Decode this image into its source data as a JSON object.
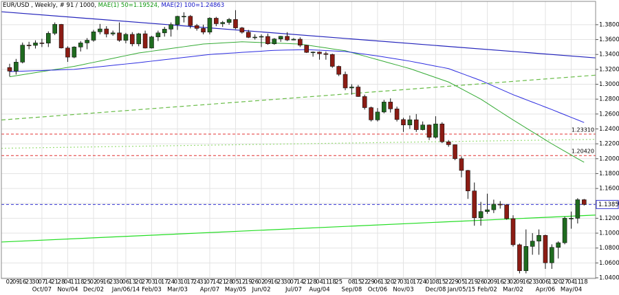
{
  "chart_data": {
    "type": "candlestick",
    "title": "EUR/USD , Weekly, # 91 / 1000,",
    "indicator_labels": [
      {
        "text": "MAE(1) 50=1.19524,",
        "color": "#119911"
      },
      {
        "text": "MAE(2) 100=1.24863",
        "color": "#1515c8"
      }
    ],
    "categories": [
      "02",
      "09",
      "16",
      "23",
      "30",
      "07",
      "14",
      "21",
      "28",
      "04",
      "11",
      "18",
      "25",
      "02",
      "09",
      "16",
      "23",
      "30",
      "06",
      "13",
      "20",
      "27",
      "03",
      "10",
      "17",
      "24",
      "03",
      "10",
      "17",
      "24",
      "31",
      "07",
      "14",
      "21",
      "28",
      "05",
      "12",
      "19",
      "26",
      "02",
      "09",
      "16",
      "23",
      "30",
      "07",
      "14",
      "21",
      "28",
      "04",
      "11",
      "18",
      "25",
      null,
      "08",
      "15",
      "22",
      "29",
      "06",
      "13",
      "20",
      "27",
      "03",
      "10",
      "17",
      "24",
      "01",
      "08",
      "15",
      "22",
      "29",
      "05",
      "12",
      "19",
      "26",
      "02",
      "09",
      "16",
      "23",
      "02",
      "09",
      "16",
      "23",
      "30",
      "06",
      "13",
      "20",
      "27",
      "04",
      "11",
      "18"
    ],
    "month_labels": [
      null,
      null,
      null,
      null,
      null,
      "Oct/07",
      null,
      null,
      null,
      "Nov/04",
      null,
      null,
      null,
      "Dec/02",
      null,
      null,
      null,
      null,
      "Jan/06/14",
      null,
      null,
      null,
      "Feb/03",
      null,
      null,
      null,
      "Mar/03",
      null,
      null,
      null,
      null,
      "Apr/07",
      null,
      null,
      null,
      "May/05",
      null,
      null,
      null,
      "Jun/02",
      null,
      null,
      null,
      null,
      "Jul/07",
      null,
      null,
      null,
      "Aug/04",
      null,
      null,
      null,
      null,
      "Sep/08",
      null,
      null,
      null,
      "Oct/06",
      null,
      null,
      null,
      "Nov/03",
      null,
      null,
      null,
      null,
      "Dec/08",
      null,
      null,
      null,
      "Jan/05/15",
      null,
      null,
      null,
      "Feb/02",
      null,
      null,
      null,
      "Mar/02",
      null,
      null,
      null,
      null,
      "Apr/06",
      null,
      null,
      null,
      "May/04",
      null,
      null
    ],
    "open": [
      1.3225,
      1.3176,
      1.3297,
      1.3525,
      1.3522,
      1.3555,
      1.3552,
      1.3684,
      1.3804,
      1.3487,
      1.3364,
      1.35,
      1.3555,
      1.3591,
      1.3704,
      1.3743,
      1.3675,
      1.369,
      1.359,
      1.367,
      1.3542,
      1.3678,
      1.3486,
      1.3636,
      1.369,
      1.374,
      1.3802,
      1.3912,
      1.3913,
      1.3788,
      1.375,
      1.37,
      1.3887,
      1.3813,
      1.383,
      1.387,
      1.3757,
      1.3699,
      1.363,
      1.3633,
      1.3642,
      1.3543,
      1.3608,
      1.3644,
      1.3594,
      1.3605,
      1.3524,
      1.3428,
      1.3432,
      1.3411,
      1.34,
      1.324,
      1.3133,
      1.295,
      1.2963,
      1.2835,
      1.2686,
      1.2521,
      1.2627,
      1.2761,
      1.2669,
      1.2526,
      1.2453,
      1.2523,
      1.239,
      1.2453,
      1.2288,
      1.2467,
      1.2227,
      1.2188,
      1.2,
      1.1842,
      1.1567,
      1.1207,
      1.129,
      1.1314,
      1.1388,
      1.138,
      1.1195,
      1.0844,
      1.0495,
      1.0822,
      1.0893,
      1.097,
      1.0602,
      1.0809,
      1.0871,
      1.12,
      1.12,
      1.1449
    ],
    "high": [
      1.3275,
      1.334,
      1.356,
      1.357,
      1.359,
      1.361,
      1.371,
      1.383,
      1.381,
      1.351,
      1.351,
      1.358,
      1.362,
      1.373,
      1.381,
      1.378,
      1.372,
      1.383,
      1.369,
      1.37,
      1.369,
      1.372,
      1.365,
      1.372,
      1.377,
      1.383,
      1.392,
      1.3967,
      1.393,
      1.381,
      1.38,
      1.39,
      1.3905,
      1.385,
      1.389,
      1.3995,
      1.377,
      1.373,
      1.367,
      1.367,
      1.368,
      1.362,
      1.365,
      1.37,
      1.362,
      1.363,
      1.353,
      1.344,
      1.344,
      1.344,
      1.341,
      1.325,
      1.317,
      1.3,
      1.299,
      1.286,
      1.27,
      1.268,
      1.279,
      1.281,
      1.27,
      1.255,
      1.258,
      1.26,
      1.25,
      1.246,
      1.257,
      1.249,
      1.225,
      1.219,
      1.203,
      1.185,
      1.168,
      1.142,
      1.153,
      1.145,
      1.143,
      1.139,
      1.124,
      1.086,
      1.105,
      1.1,
      1.105,
      1.098,
      1.085,
      1.089,
      1.122,
      1.129,
      1.147,
      1.146
    ],
    "low": [
      1.3105,
      1.313,
      1.328,
      1.347,
      1.348,
      1.35,
      1.35,
      1.366,
      1.348,
      1.33,
      1.335,
      1.344,
      1.347,
      1.357,
      1.367,
      1.363,
      1.365,
      1.357,
      1.355,
      1.351,
      1.351,
      1.348,
      1.348,
      1.358,
      1.364,
      1.364,
      1.373,
      1.383,
      1.375,
      1.372,
      1.367,
      1.367,
      1.378,
      1.377,
      1.38,
      1.374,
      1.368,
      1.362,
      1.36,
      1.35,
      1.353,
      1.353,
      1.357,
      1.358,
      1.359,
      1.35,
      1.342,
      1.337,
      1.333,
      1.333,
      1.322,
      1.311,
      1.292,
      1.286,
      1.283,
      1.266,
      1.25,
      1.25,
      1.261,
      1.262,
      1.25,
      1.236,
      1.24,
      1.236,
      1.238,
      1.225,
      1.227,
      1.221,
      1.216,
      1.198,
      1.175,
      1.146,
      1.11,
      1.11,
      1.126,
      1.127,
      1.133,
      1.118,
      1.082,
      1.046,
      1.046,
      1.071,
      1.071,
      1.052,
      1.052,
      1.066,
      1.085,
      1.106,
      1.113,
      1.137
    ],
    "close": [
      1.3176,
      1.3297,
      1.3525,
      1.3522,
      1.3555,
      1.3552,
      1.3684,
      1.3804,
      1.3487,
      1.3364,
      1.35,
      1.3555,
      1.3591,
      1.3704,
      1.3743,
      1.3675,
      1.369,
      1.359,
      1.367,
      1.3542,
      1.3678,
      1.3486,
      1.3636,
      1.369,
      1.374,
      1.3802,
      1.3912,
      1.3913,
      1.3788,
      1.375,
      1.37,
      1.3887,
      1.3813,
      1.383,
      1.387,
      1.3757,
      1.3699,
      1.363,
      1.3633,
      1.3642,
      1.3543,
      1.3608,
      1.3644,
      1.3594,
      1.3605,
      1.3524,
      1.3428,
      1.3432,
      1.3411,
      1.34,
      1.324,
      1.3133,
      1.295,
      1.2963,
      1.2835,
      1.2686,
      1.2521,
      1.2627,
      1.2761,
      1.2669,
      1.2526,
      1.2453,
      1.2523,
      1.239,
      1.2453,
      1.2288,
      1.2467,
      1.2227,
      1.2188,
      1.2,
      1.1842,
      1.1567,
      1.1207,
      1.129,
      1.1314,
      1.1388,
      1.138,
      1.1195,
      1.0844,
      1.0495,
      1.0822,
      1.0893,
      1.097,
      1.0602,
      1.0809,
      1.0871,
      1.12,
      1.12,
      1.1449,
      1.1385
    ],
    "up_color": "#1f6b1f",
    "down_color": "#8c1c14",
    "series": [
      {
        "color": "#33aa33",
        "values": [
          1.31,
          1.3114,
          1.3128,
          1.3142,
          1.3156,
          1.317,
          1.3184,
          1.3198,
          1.3212,
          1.3226,
          1.324,
          1.3258,
          1.3276,
          1.3294,
          1.3312,
          1.333,
          1.3348,
          1.3366,
          1.3384,
          1.3402,
          1.342,
          1.3432,
          1.3444,
          1.3456,
          1.3468,
          1.348,
          1.3492,
          1.3504,
          1.3516,
          1.3528,
          1.354,
          1.3545,
          1.355,
          1.3555,
          1.356,
          1.3565,
          1.357,
          1.3567,
          1.3563,
          1.356,
          1.3557,
          1.3553,
          1.355,
          1.3547,
          1.3543,
          1.354,
          1.3527,
          1.3514,
          1.3501,
          1.3488,
          1.3475,
          1.3462,
          1.345,
          1.3426,
          1.3402,
          1.3378,
          1.3354,
          1.333,
          1.3306,
          1.3282,
          1.3258,
          1.3234,
          1.321,
          1.318,
          1.315,
          1.312,
          1.309,
          1.306,
          1.303,
          1.2984,
          1.2938,
          1.2892,
          1.2846,
          1.28,
          1.2744,
          1.2688,
          1.2632,
          1.2576,
          1.252,
          1.2467,
          1.2413,
          1.236,
          1.2307,
          1.2253,
          1.22,
          1.215,
          1.21,
          1.205,
          1.2,
          1.1952
        ]
      },
      {
        "color": "#2b2be0",
        "values": [
          1.317,
          1.3173,
          1.3176,
          1.3179,
          1.3182,
          1.3185,
          1.3188,
          1.3191,
          1.3194,
          1.3197,
          1.32,
          1.3209,
          1.3218,
          1.3227,
          1.3236,
          1.3245,
          1.3254,
          1.3263,
          1.3272,
          1.3281,
          1.329,
          1.33,
          1.331,
          1.332,
          1.333,
          1.334,
          1.335,
          1.336,
          1.337,
          1.338,
          1.339,
          1.34,
          1.3406,
          1.3411,
          1.3417,
          1.3422,
          1.3428,
          1.3433,
          1.3439,
          1.3444,
          1.345,
          1.3455,
          1.3457,
          1.3459,
          1.3461,
          1.3463,
          1.3465,
          1.3461,
          1.3457,
          1.3453,
          1.3448,
          1.3444,
          1.344,
          1.3428,
          1.3416,
          1.3404,
          1.3392,
          1.338,
          1.3366,
          1.3352,
          1.3338,
          1.3324,
          1.331,
          1.3293,
          1.3277,
          1.326,
          1.3243,
          1.3227,
          1.321,
          1.3178,
          1.3146,
          1.3114,
          1.3082,
          1.305,
          1.3012,
          1.2974,
          1.2936,
          1.2898,
          1.286,
          1.2827,
          1.2793,
          1.276,
          1.2727,
          1.2693,
          1.266,
          1.2625,
          1.259,
          1.2555,
          1.2521,
          1.2486
        ]
      }
    ],
    "trendlines": [
      {
        "color": "#2222bb",
        "style": "solid",
        "start": 1.3974,
        "end": 1.3354
      },
      {
        "color": "#22dd22",
        "style": "solid",
        "start": 1.0881,
        "end": 1.1243
      },
      {
        "color": "#66bb44",
        "style": "dashed",
        "start": 1.252,
        "end": 1.3122
      },
      {
        "color": "#99dd77",
        "style": "dotted",
        "start": 1.214,
        "end": 1.226
      }
    ],
    "levels": [
      {
        "value": 1.2331,
        "label": "1.23310",
        "color": "#e03030",
        "boxed": false
      },
      {
        "value": 1.2042,
        "label": "1.20420",
        "color": "#e03030",
        "boxed": false
      },
      {
        "value": 1.1385,
        "label": "1.13850",
        "color": "#3030d0",
        "boxed": true
      }
    ],
    "ylim": [
      1.0391,
      1.4113
    ],
    "yticks": [
      {
        "value": 1.04,
        "label": "1.04000"
      },
      {
        "value": 1.06,
        "label": "1.06000"
      },
      {
        "value": 1.08,
        "label": "1.08000"
      },
      {
        "value": 1.1,
        "label": "1.10000"
      },
      {
        "value": 1.12,
        "label": "1.12000"
      },
      {
        "value": 1.14,
        "label": "1.14000"
      },
      {
        "value": 1.16,
        "label": "1.16000"
      },
      {
        "value": 1.18,
        "label": "1.18000"
      },
      {
        "value": 1.2,
        "label": "1.20000"
      },
      {
        "value": 1.22,
        "label": "1.22000"
      },
      {
        "value": 1.24,
        "label": "1.24000"
      },
      {
        "value": 1.26,
        "label": "1.26000"
      },
      {
        "value": 1.28,
        "label": "1.28000"
      },
      {
        "value": 1.3,
        "label": "1.30000"
      },
      {
        "value": 1.32,
        "label": "1.32000"
      },
      {
        "value": 1.34,
        "label": "1.34000"
      },
      {
        "value": 1.36,
        "label": "1.36000"
      },
      {
        "value": 1.38,
        "label": "1.38000"
      }
    ],
    "grid": true
  }
}
